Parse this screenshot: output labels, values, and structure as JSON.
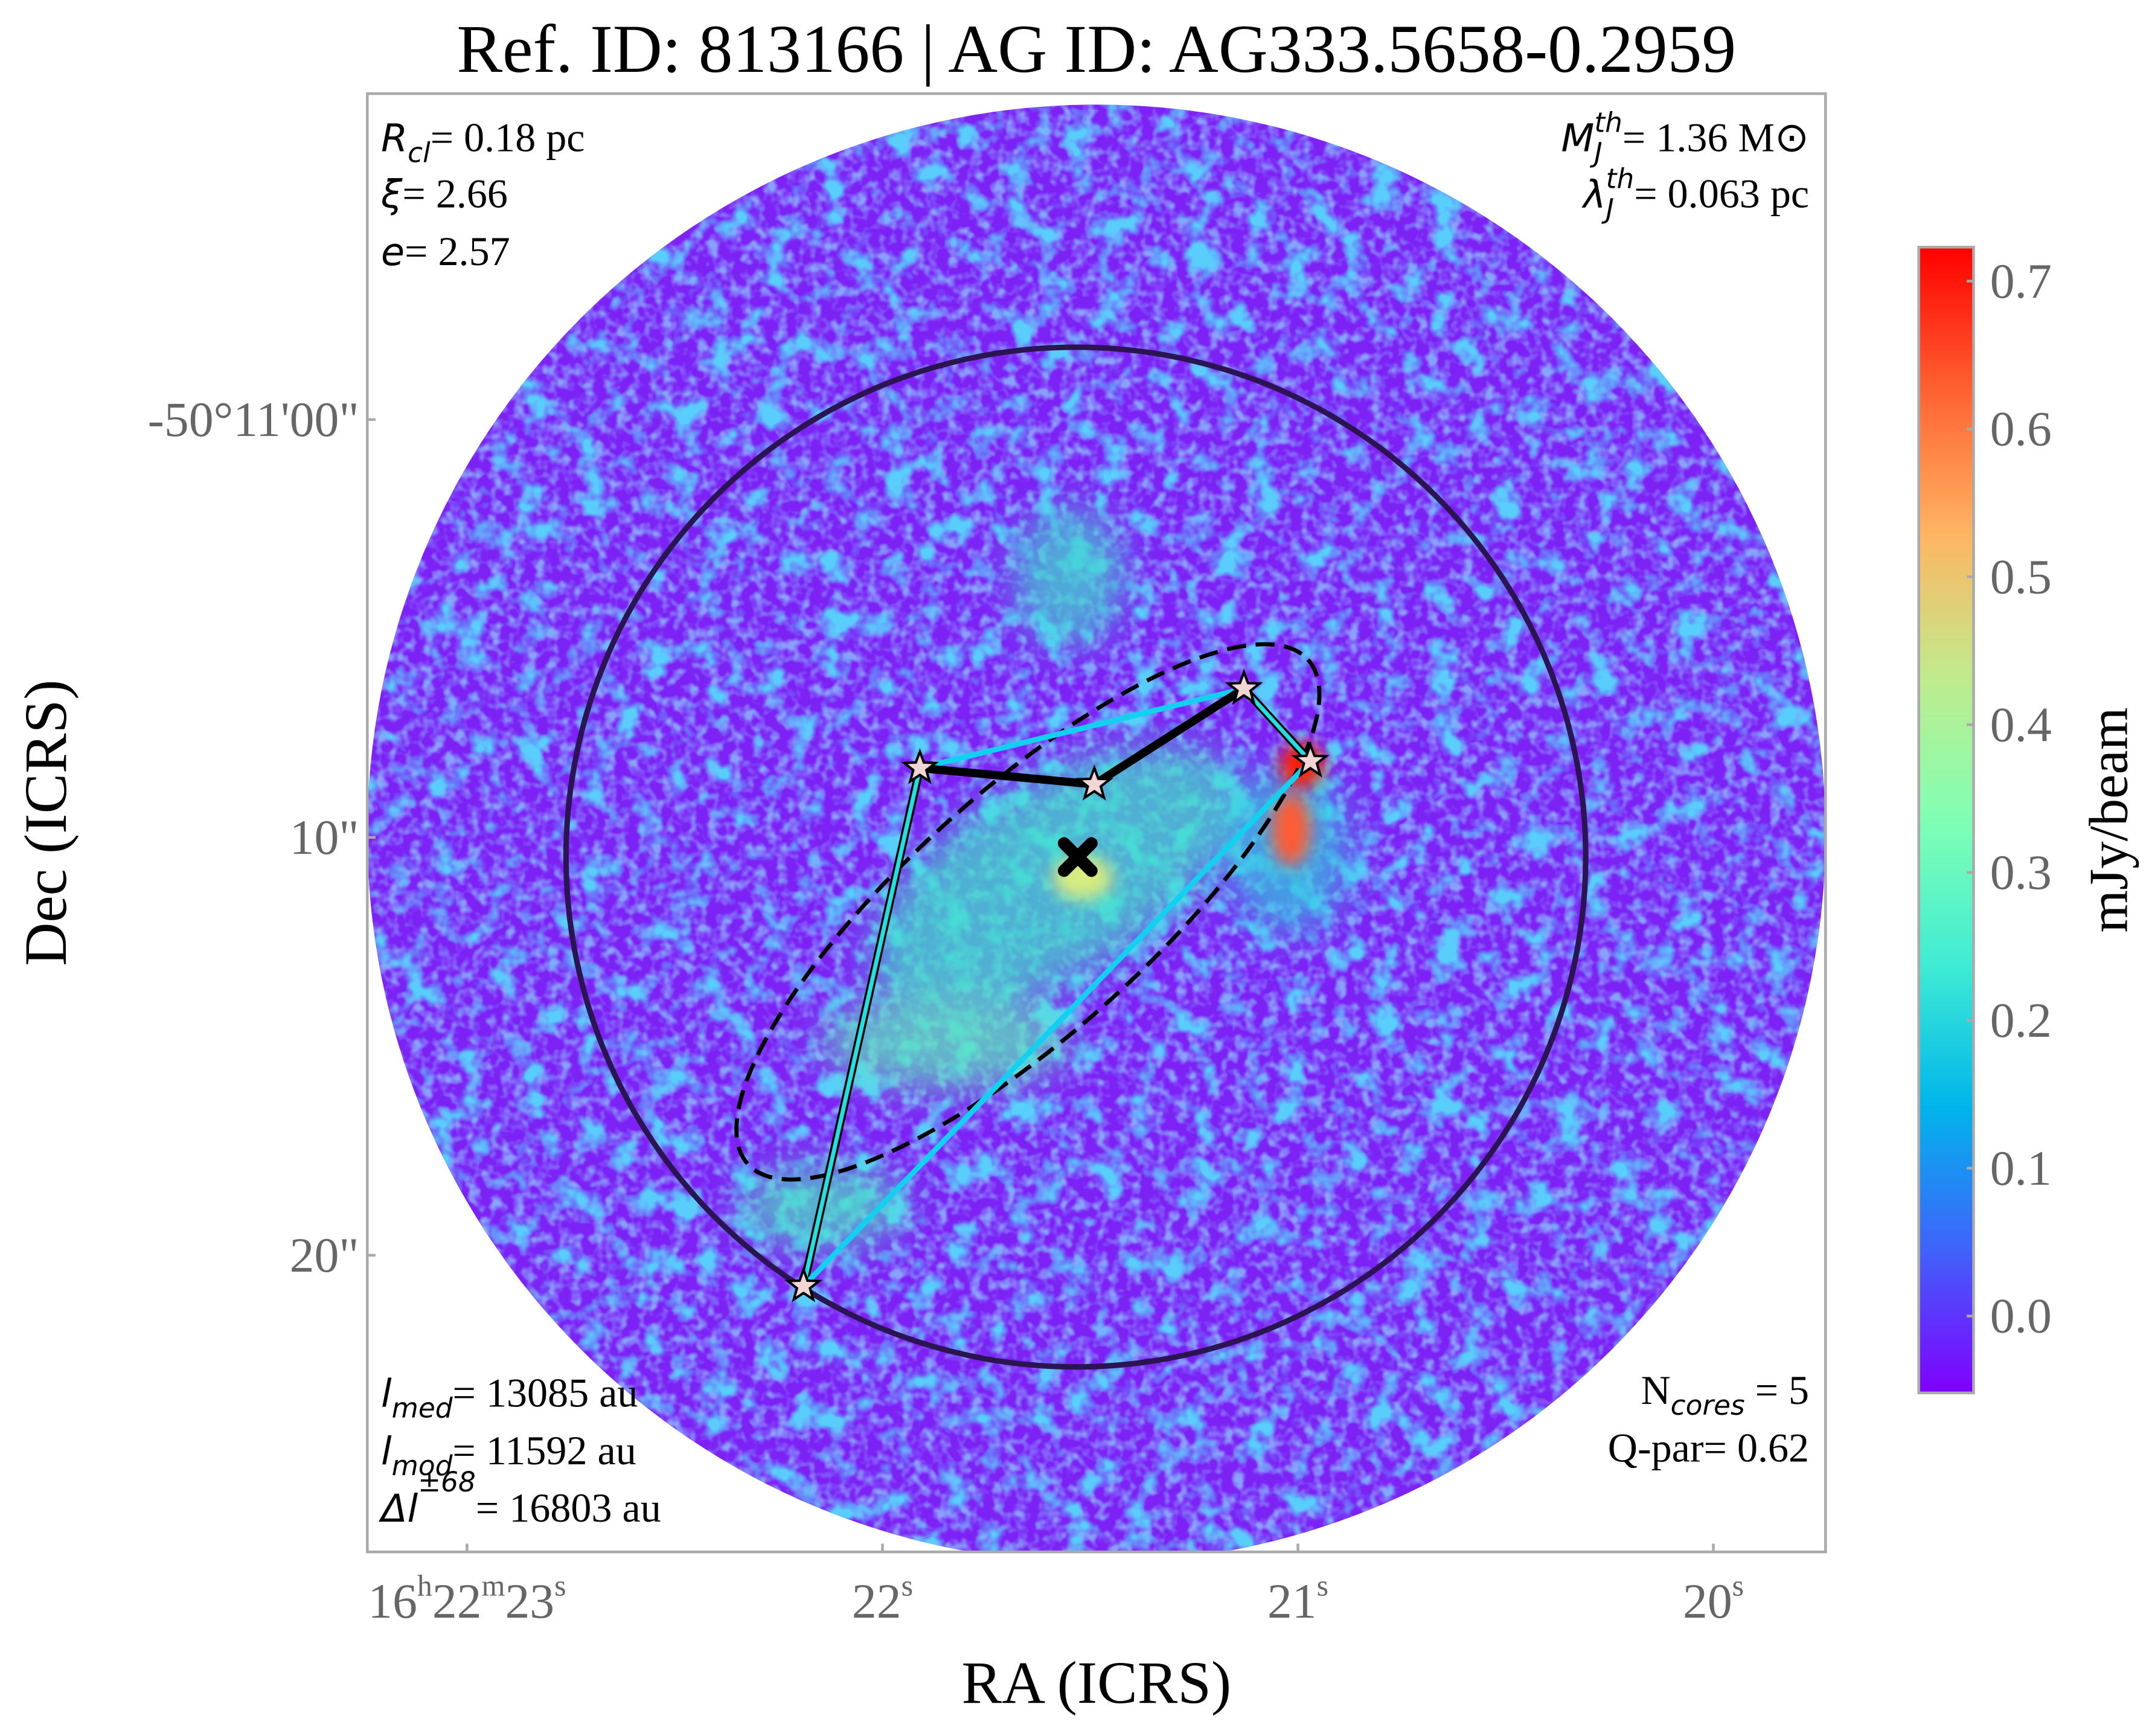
{
  "chart_data": {
    "type": "map",
    "title": "Ref. ID: 813166 | AG ID: AG333.5658-0.2959",
    "xlabel": "RA (ICRS)",
    "ylabel": "Dec (ICRS)",
    "xlim": [
      23.24,
      19.73
    ],
    "xticks": [
      {
        "value": 23,
        "label": "16h22m23s"
      },
      {
        "value": 22,
        "label": "22s"
      },
      {
        "value": 21,
        "label": "21s"
      },
      {
        "value": 20,
        "label": "20s"
      }
    ],
    "ylim": [
      27.1,
      -7.8
    ],
    "yticks": [
      {
        "value": 0,
        "label": "-50°11'00\""
      },
      {
        "value": 10,
        "label": "10\""
      },
      {
        "value": 20,
        "label": "20\""
      }
    ],
    "cores": {
      "x": [
        21.91,
        21.49,
        21.13,
        20.97,
        22.19
      ],
      "y": [
        8.34,
        8.73,
        6.44,
        8.18,
        20.74
      ]
    },
    "centroid": {
      "x": 21.53,
      "y": 10.47
    },
    "colorbar": {
      "label": "mJy/beam",
      "clim": [
        -0.052,
        0.723
      ],
      "ticks": [
        {
          "value": 0,
          "label": "0.0"
        },
        {
          "value": 0.1,
          "label": "0.1"
        },
        {
          "value": 0.2,
          "label": "0.2"
        },
        {
          "value": 0.3,
          "label": "0.3"
        },
        {
          "value": 0.4,
          "label": "0.4"
        },
        {
          "value": 0.5,
          "label": "0.5"
        },
        {
          "value": 0.6,
          "label": "0.6"
        },
        {
          "value": 0.7,
          "label": "0.7"
        }
      ],
      "colormap": [
        "#8000ff",
        "#4062fa",
        "#00b5eb",
        "#40ecd4",
        "#80ffb4",
        "#c0eb8d",
        "#ffb462",
        "#ff6232",
        "#ff0000"
      ]
    },
    "annotations": {
      "top_left": [
        {
          "sym": "R",
          "sub": "cl",
          "text": "= 0.18 pc"
        },
        {
          "sym": "ξ",
          "text": "= 2.66"
        },
        {
          "sym": "e",
          "text": "= 2.57"
        }
      ],
      "top_right": [
        {
          "sym": "M",
          "sub": "J",
          "sup": "th",
          "text": "= 1.36 M⊙"
        },
        {
          "sym": "λ",
          "sub": "J",
          "sup": "th",
          "text": "= 0.063 pc"
        }
      ],
      "bottom_left": [
        {
          "sym": "l",
          "sub": "med",
          "text": "= 13085 au"
        },
        {
          "sym": "l",
          "sub": "mod",
          "text": "= 11592 au"
        },
        {
          "sym": "Δl",
          "sup": "±68",
          "text": "= 16803 au"
        }
      ],
      "bottom_right": [
        {
          "text": "N"
        },
        {
          "text": "Q-par= 0.62"
        }
      ],
      "ncores": {
        "sub": "cores",
        "text": " = 5"
      }
    }
  }
}
